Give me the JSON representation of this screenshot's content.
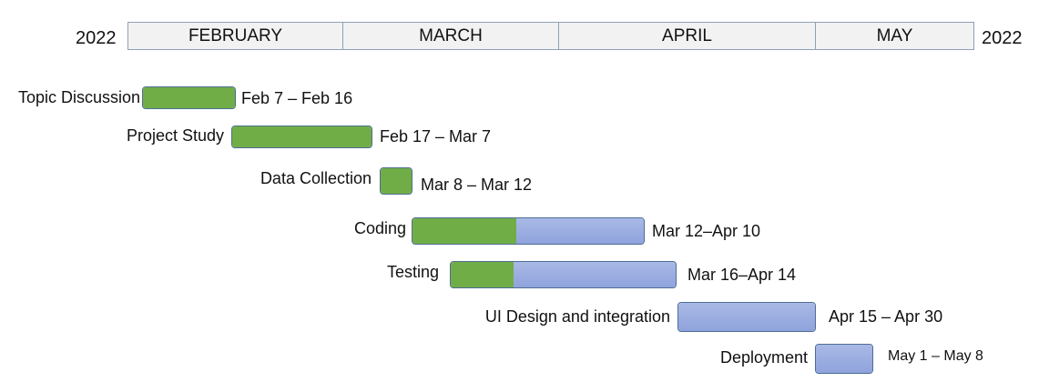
{
  "header": {
    "year_left": "2022",
    "year_right": "2022",
    "months": [
      "FEBRUARY",
      "MARCH",
      "APRIL",
      "MAY"
    ]
  },
  "tasks": [
    {
      "name": "Topic Discussion",
      "dates": "Feb 7 – Feb  16",
      "progress": 1.0
    },
    {
      "name": "Project Study",
      "dates": "Feb 17 – Mar 7",
      "progress": 1.0
    },
    {
      "name": "Data Collection",
      "dates": "Mar 8 – Mar 12",
      "progress": 1.0
    },
    {
      "name": "Coding",
      "dates": "Mar 12–Apr 10",
      "progress": 0.45
    },
    {
      "name": "Testing",
      "dates": "Mar 16–Apr 14",
      "progress": 0.28
    },
    {
      "name": "UI Design and integration",
      "dates": "Apr 15 – Apr 30",
      "progress": 0.0
    },
    {
      "name": "Deployment",
      "dates": "May 1  – May 8",
      "progress": 0.0
    }
  ],
  "colors": {
    "completed": "#70ad47",
    "remaining": "#8fa3dc"
  }
}
